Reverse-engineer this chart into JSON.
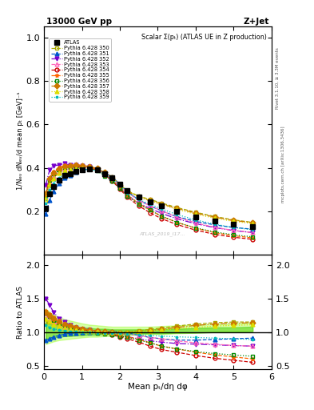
{
  "title_left": "13000 GeV pp",
  "title_right": "Z+Jet",
  "plot_title": "Scalar Σ(pₜ) (ATLAS UE in Z production)",
  "ylabel_main": "1/Nₑᵥ dNₑᵥ/d mean pₜ [GeV]⁻¹",
  "ylabel_ratio": "Ratio to ATLAS",
  "xlabel": "Mean pₜ/dη dφ",
  "right_label_top": "Rivet 3.1.10, ≥ 3.3M events",
  "right_label_bot": "mcplots.cern.ch [arXiv:1306.3436]",
  "watermark": "ATLAS_2019_I17...",
  "xlim": [
    0,
    6
  ],
  "ylim_main": [
    0.0,
    1.05
  ],
  "ylim_ratio": [
    0.45,
    2.15
  ],
  "yticks_main": [
    0.2,
    0.4,
    0.6,
    0.8,
    1.0
  ],
  "yticks_ratio": [
    0.5,
    1.0,
    1.5,
    2.0
  ],
  "xticks": [
    0,
    1,
    2,
    3,
    4,
    5,
    6
  ],
  "atlas_x": [
    0.05,
    0.15,
    0.25,
    0.4,
    0.55,
    0.7,
    0.85,
    1.0,
    1.2,
    1.4,
    1.6,
    1.8,
    2.0,
    2.2,
    2.5,
    2.8,
    3.1,
    3.5,
    4.0,
    4.5,
    5.0,
    5.5
  ],
  "atlas_y": [
    0.215,
    0.28,
    0.315,
    0.345,
    0.365,
    0.375,
    0.385,
    0.39,
    0.395,
    0.39,
    0.375,
    0.355,
    0.325,
    0.295,
    0.265,
    0.245,
    0.225,
    0.2,
    0.175,
    0.155,
    0.14,
    0.13
  ],
  "series": [
    {
      "label": "Pythia 6.428 350",
      "color": "#aaaa00",
      "marker": "s",
      "linestyle": "--",
      "filled": false,
      "ratio_lo": [
        1.15,
        1.15,
        1.12,
        1.1,
        1.08,
        1.07,
        1.06,
        1.05,
        1.03,
        1.02,
        1.01,
        1.01,
        1.0,
        1.0,
        1.02,
        1.04,
        1.06,
        1.09,
        1.12,
        1.14,
        1.15,
        1.15
      ]
    },
    {
      "label": "Pythia 6.428 351",
      "color": "#0055cc",
      "marker": "^",
      "linestyle": "--",
      "filled": true,
      "ratio_lo": [
        0.88,
        0.9,
        0.93,
        0.95,
        0.97,
        0.98,
        0.99,
        1.0,
        1.0,
        1.0,
        1.01,
        1.01,
        1.0,
        0.99,
        0.95,
        0.92,
        0.9,
        0.88,
        0.88,
        0.89,
        0.9,
        0.91
      ]
    },
    {
      "label": "Pythia 6.428 352",
      "color": "#7700cc",
      "marker": "v",
      "linestyle": "-.",
      "filled": true,
      "ratio_lo": [
        1.5,
        1.4,
        1.3,
        1.2,
        1.15,
        1.1,
        1.07,
        1.05,
        1.03,
        1.01,
        0.99,
        0.97,
        0.95,
        0.93,
        0.9,
        0.87,
        0.85,
        0.83,
        0.82,
        0.81,
        0.8,
        0.79
      ]
    },
    {
      "label": "Pythia 6.428 353",
      "color": "#ff66bb",
      "marker": "^",
      "linestyle": "--",
      "filled": false,
      "ratio_lo": [
        1.25,
        1.2,
        1.15,
        1.1,
        1.07,
        1.05,
        1.04,
        1.03,
        1.02,
        1.01,
        1.0,
        0.99,
        0.98,
        0.97,
        0.95,
        0.92,
        0.9,
        0.87,
        0.84,
        0.82,
        0.8,
        0.79
      ]
    },
    {
      "label": "Pythia 6.428 354",
      "color": "#cc0000",
      "marker": "o",
      "linestyle": "--",
      "filled": false,
      "ratio_lo": [
        1.3,
        1.25,
        1.2,
        1.15,
        1.11,
        1.08,
        1.06,
        1.04,
        1.02,
        1.0,
        0.98,
        0.96,
        0.93,
        0.9,
        0.85,
        0.79,
        0.74,
        0.7,
        0.65,
        0.61,
        0.58,
        0.55
      ]
    },
    {
      "label": "Pythia 6.428 355",
      "color": "#ff6600",
      "marker": "*",
      "linestyle": "--",
      "filled": true,
      "ratio_lo": [
        1.32,
        1.27,
        1.22,
        1.17,
        1.13,
        1.1,
        1.08,
        1.06,
        1.03,
        1.01,
        0.99,
        0.97,
        0.95,
        0.93,
        0.89,
        0.84,
        0.79,
        0.75,
        0.7,
        0.66,
        0.63,
        0.6
      ]
    },
    {
      "label": "Pythia 6.428 356",
      "color": "#008800",
      "marker": "s",
      "linestyle": ":",
      "filled": false,
      "ratio_lo": [
        1.28,
        1.23,
        1.18,
        1.13,
        1.1,
        1.07,
        1.05,
        1.03,
        1.01,
        0.99,
        0.97,
        0.96,
        0.94,
        0.92,
        0.88,
        0.84,
        0.79,
        0.75,
        0.71,
        0.68,
        0.66,
        0.64
      ]
    },
    {
      "label": "Pythia 6.428 357",
      "color": "#cc7700",
      "marker": "D",
      "linestyle": "-.",
      "filled": true,
      "ratio_lo": [
        1.3,
        1.25,
        1.2,
        1.15,
        1.11,
        1.09,
        1.07,
        1.05,
        1.03,
        1.02,
        1.01,
        1.0,
        0.99,
        0.99,
        1.0,
        1.02,
        1.04,
        1.07,
        1.1,
        1.12,
        1.13,
        1.14
      ]
    },
    {
      "label": "Pythia 6.428 358",
      "color": "#dddd00",
      "marker": "^",
      "linestyle": ":",
      "filled": true,
      "ratio_lo": [
        1.2,
        1.16,
        1.12,
        1.09,
        1.06,
        1.04,
        1.03,
        1.02,
        1.01,
        1.01,
        1.0,
        1.0,
        1.0,
        1.0,
        1.01,
        1.02,
        1.03,
        1.05,
        1.07,
        1.09,
        1.1,
        1.11
      ]
    },
    {
      "label": "Pythia 6.428 359",
      "color": "#00bbbb",
      "marker": ".",
      "linestyle": ":",
      "filled": true,
      "ratio_lo": [
        1.1,
        1.07,
        1.05,
        1.03,
        1.02,
        1.01,
        1.01,
        1.0,
        1.0,
        0.99,
        0.99,
        0.98,
        0.98,
        0.97,
        0.96,
        0.95,
        0.94,
        0.93,
        0.92,
        0.91,
        0.9,
        0.89
      ]
    }
  ],
  "band_color": "#88ff00",
  "band_alpha": 0.35,
  "band_inner_color": "#44cc00",
  "band_inner_alpha": 0.5,
  "band_x": [
    0.05,
    0.15,
    0.25,
    0.4,
    0.55,
    0.7,
    0.85,
    1.0,
    1.2,
    1.4,
    1.6,
    1.8,
    2.0,
    2.2,
    2.5,
    2.8,
    3.1,
    3.5,
    4.0,
    4.5,
    5.0,
    5.5
  ],
  "band_y_lo": [
    0.82,
    0.84,
    0.86,
    0.88,
    0.89,
    0.9,
    0.91,
    0.92,
    0.93,
    0.93,
    0.94,
    0.94,
    0.95,
    0.95,
    0.96,
    0.97,
    0.97,
    0.98,
    0.99,
    1.0,
    1.01,
    1.02
  ],
  "band_y_hi": [
    1.35,
    1.3,
    1.26,
    1.22,
    1.19,
    1.17,
    1.15,
    1.13,
    1.11,
    1.1,
    1.09,
    1.08,
    1.08,
    1.08,
    1.08,
    1.08,
    1.09,
    1.1,
    1.11,
    1.12,
    1.13,
    1.14
  ],
  "band_inner_lo": [
    0.9,
    0.91,
    0.92,
    0.93,
    0.94,
    0.94,
    0.95,
    0.95,
    0.96,
    0.96,
    0.97,
    0.97,
    0.97,
    0.97,
    0.98,
    0.98,
    0.98,
    0.99,
    0.99,
    1.0,
    1.0,
    1.01
  ],
  "band_inner_hi": [
    1.18,
    1.16,
    1.14,
    1.12,
    1.1,
    1.09,
    1.08,
    1.07,
    1.06,
    1.05,
    1.05,
    1.04,
    1.04,
    1.04,
    1.04,
    1.04,
    1.05,
    1.05,
    1.06,
    1.07,
    1.07,
    1.08
  ]
}
